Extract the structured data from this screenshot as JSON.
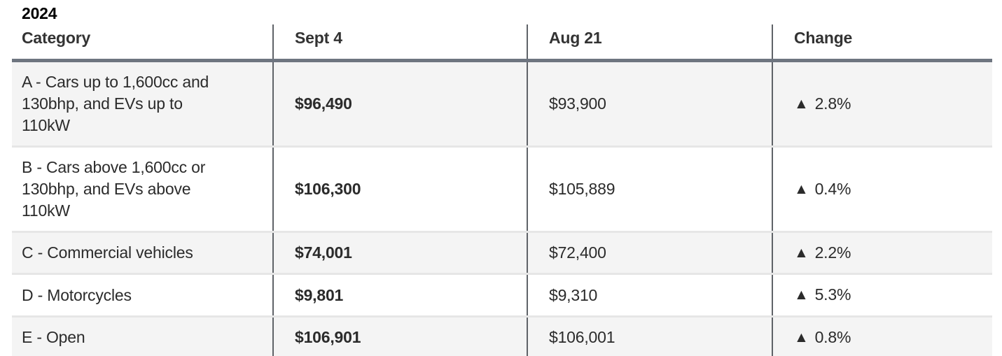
{
  "title": "2024",
  "colors": {
    "heavy_border": "#6e7580",
    "column_divider": "#5f6368",
    "row_separator": "#e6e6e6",
    "row_alt_background": "#f4f4f4",
    "header_text": "#333333",
    "body_text": "#2b2b2b",
    "title_text": "#000000"
  },
  "table": {
    "columns": [
      "Category",
      "Sept 4",
      "Aug 21",
      "Change"
    ],
    "rows": [
      {
        "category": "A - Cars up to 1,600cc and 130bhp, and EVs up to 110kW",
        "sept4": "$96,490",
        "aug21": "$93,900",
        "change_icon": "▲",
        "change": "2.8%"
      },
      {
        "category": "B - Cars above 1,600cc or 130bhp, and EVs above 110kW",
        "sept4": "$106,300",
        "aug21": "$105,889",
        "change_icon": "▲",
        "change": "0.4%"
      },
      {
        "category": "C - Commercial vehicles",
        "sept4": "$74,001",
        "aug21": "$72,400",
        "change_icon": "▲",
        "change": "2.2%"
      },
      {
        "category": "D - Motorcycles",
        "sept4": "$9,801",
        "aug21": "$9,310",
        "change_icon": "▲",
        "change": "5.3%"
      },
      {
        "category": "E - Open",
        "sept4": "$106,901",
        "aug21": "$106,001",
        "change_icon": "▲",
        "change": "0.8%"
      }
    ]
  },
  "chart_data": {
    "type": "table",
    "title": "2024",
    "columns": [
      "Category",
      "Sept 4",
      "Aug 21",
      "Change"
    ],
    "categories": [
      "A - Cars up to 1,600cc and 130bhp, and EVs up to 110kW",
      "B - Cars above 1,600cc or 130bhp, and EVs above 110kW",
      "C - Commercial vehicles",
      "D - Motorcycles",
      "E - Open"
    ],
    "series": [
      {
        "name": "Sept 4",
        "values": [
          96490,
          106300,
          74001,
          9801,
          106901
        ]
      },
      {
        "name": "Aug 21",
        "values": [
          93900,
          105889,
          72400,
          9310,
          106001
        ]
      },
      {
        "name": "Change %",
        "values": [
          2.8,
          0.4,
          2.2,
          5.3,
          0.8
        ]
      }
    ],
    "change_direction": [
      "up",
      "up",
      "up",
      "up",
      "up"
    ]
  }
}
